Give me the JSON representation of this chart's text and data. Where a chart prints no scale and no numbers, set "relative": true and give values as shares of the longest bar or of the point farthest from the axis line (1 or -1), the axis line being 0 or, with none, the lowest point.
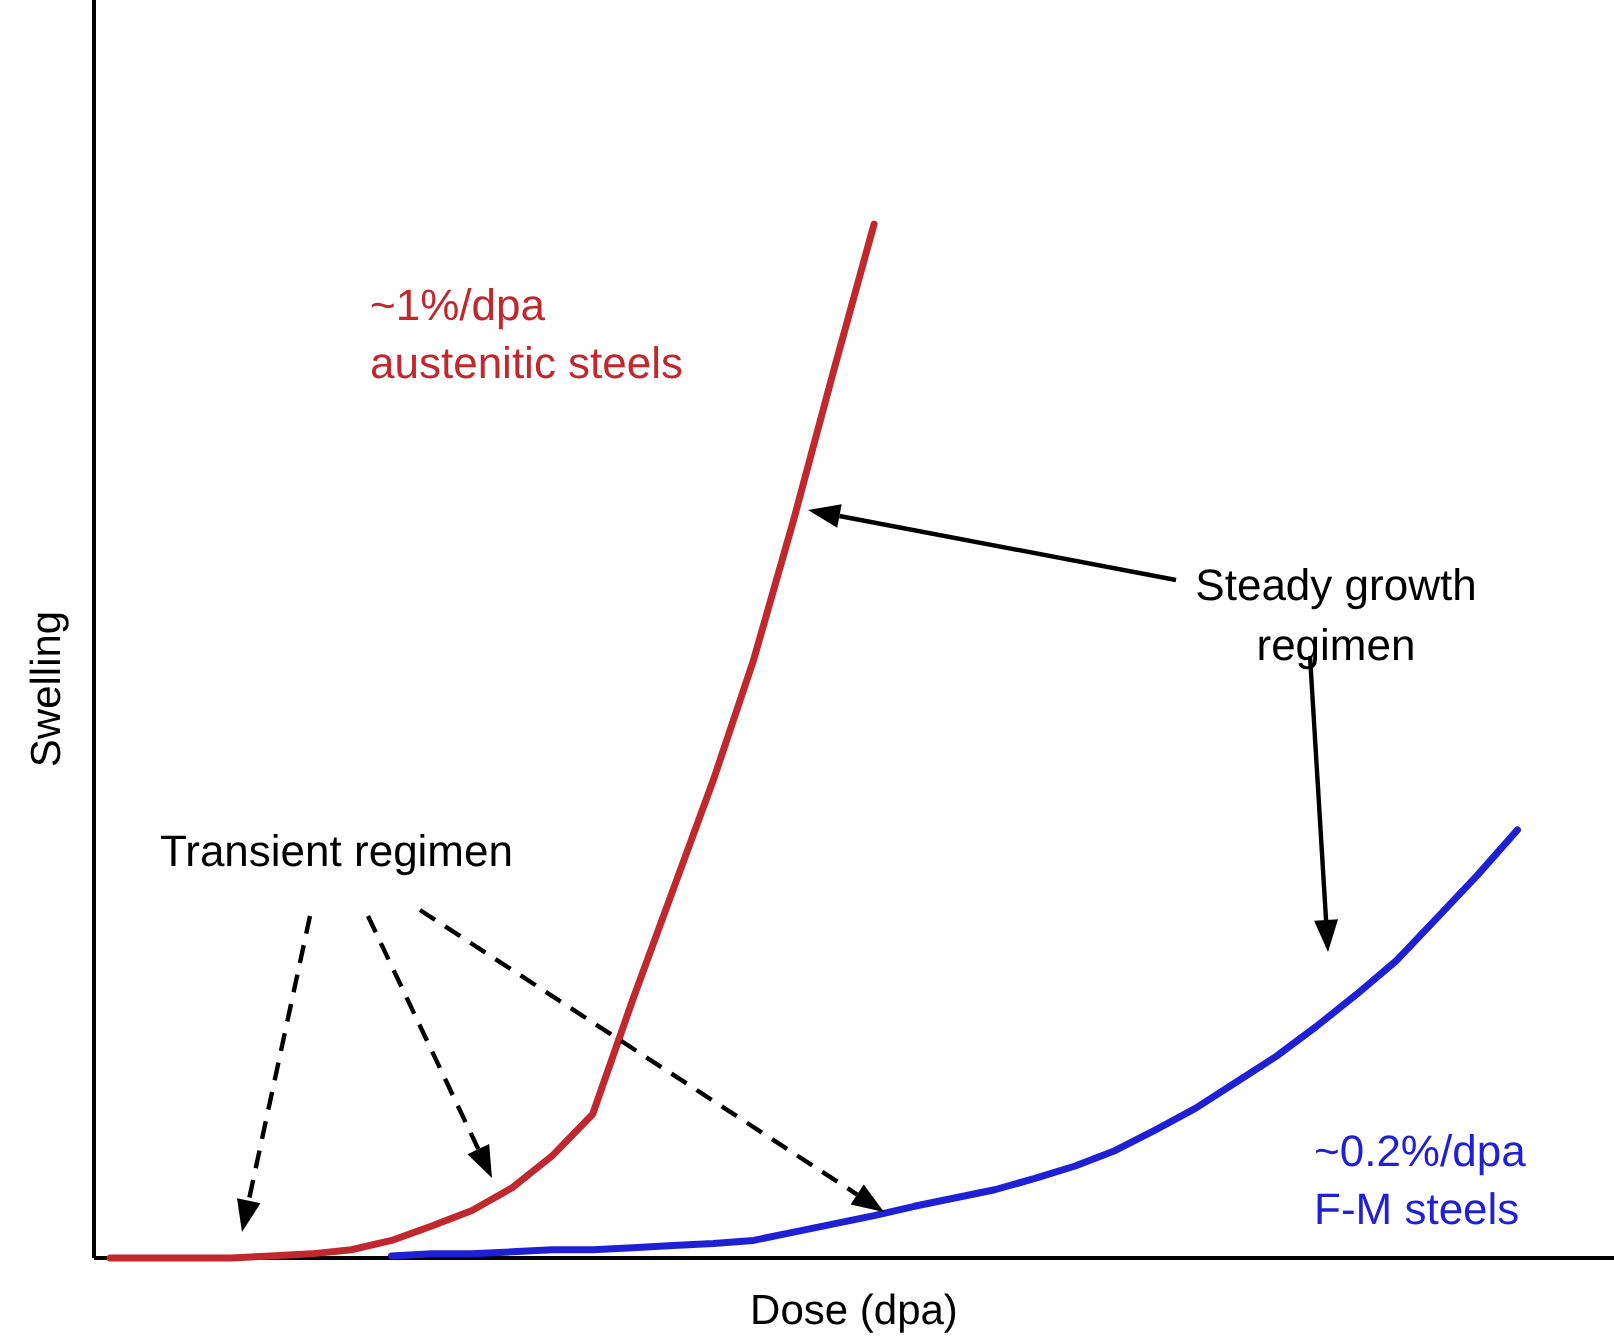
{
  "chart_data": {
    "type": "line",
    "relative": true,
    "xlabel": "Dose (dpa)",
    "ylabel": "Swelling",
    "categories": [
      null,
      null,
      null,
      null,
      null,
      null,
      null,
      null,
      null,
      null,
      null,
      null,
      null,
      null,
      null,
      null,
      null,
      null,
      null,
      null,
      null,
      null,
      null,
      null,
      null,
      null,
      null,
      null,
      null,
      null,
      null,
      null,
      null,
      null,
      null,
      null,
      null,
      null
    ],
    "series": [
      {
        "name": "~1%/dpa austenitic steels",
        "color": "#c0282d",
        "values": [
          0,
          0,
          0,
          0,
          0.002,
          0.004,
          0.008,
          0.017,
          0.031,
          0.046,
          0.068,
          0.099,
          0.139,
          0.25,
          0.356,
          0.462,
          0.578,
          0.714,
          0.859,
          1,
          null,
          null,
          null,
          null,
          null,
          null,
          null,
          null,
          null,
          null,
          null,
          null,
          null,
          null,
          null,
          null,
          null,
          null
        ]
      },
      {
        "name": "~0.2%/dpa F-M steels",
        "color": "#1f1fd6",
        "values": [
          null,
          null,
          null,
          null,
          null,
          null,
          null,
          0.002,
          0.004,
          0.004,
          0.006,
          0.008,
          0.008,
          0.01,
          0.012,
          0.014,
          0.017,
          0.025,
          0.033,
          0.041,
          0.05,
          0.058,
          0.066,
          0.077,
          0.089,
          0.104,
          0.124,
          0.145,
          0.17,
          0.195,
          0.224,
          0.255,
          0.288,
          0.329,
          0.37,
          0.414,
          null,
          null
        ]
      }
    ],
    "annotations": [
      "Steady growth regimen",
      "Transient regimen"
    ],
    "legend": false
  }
}
